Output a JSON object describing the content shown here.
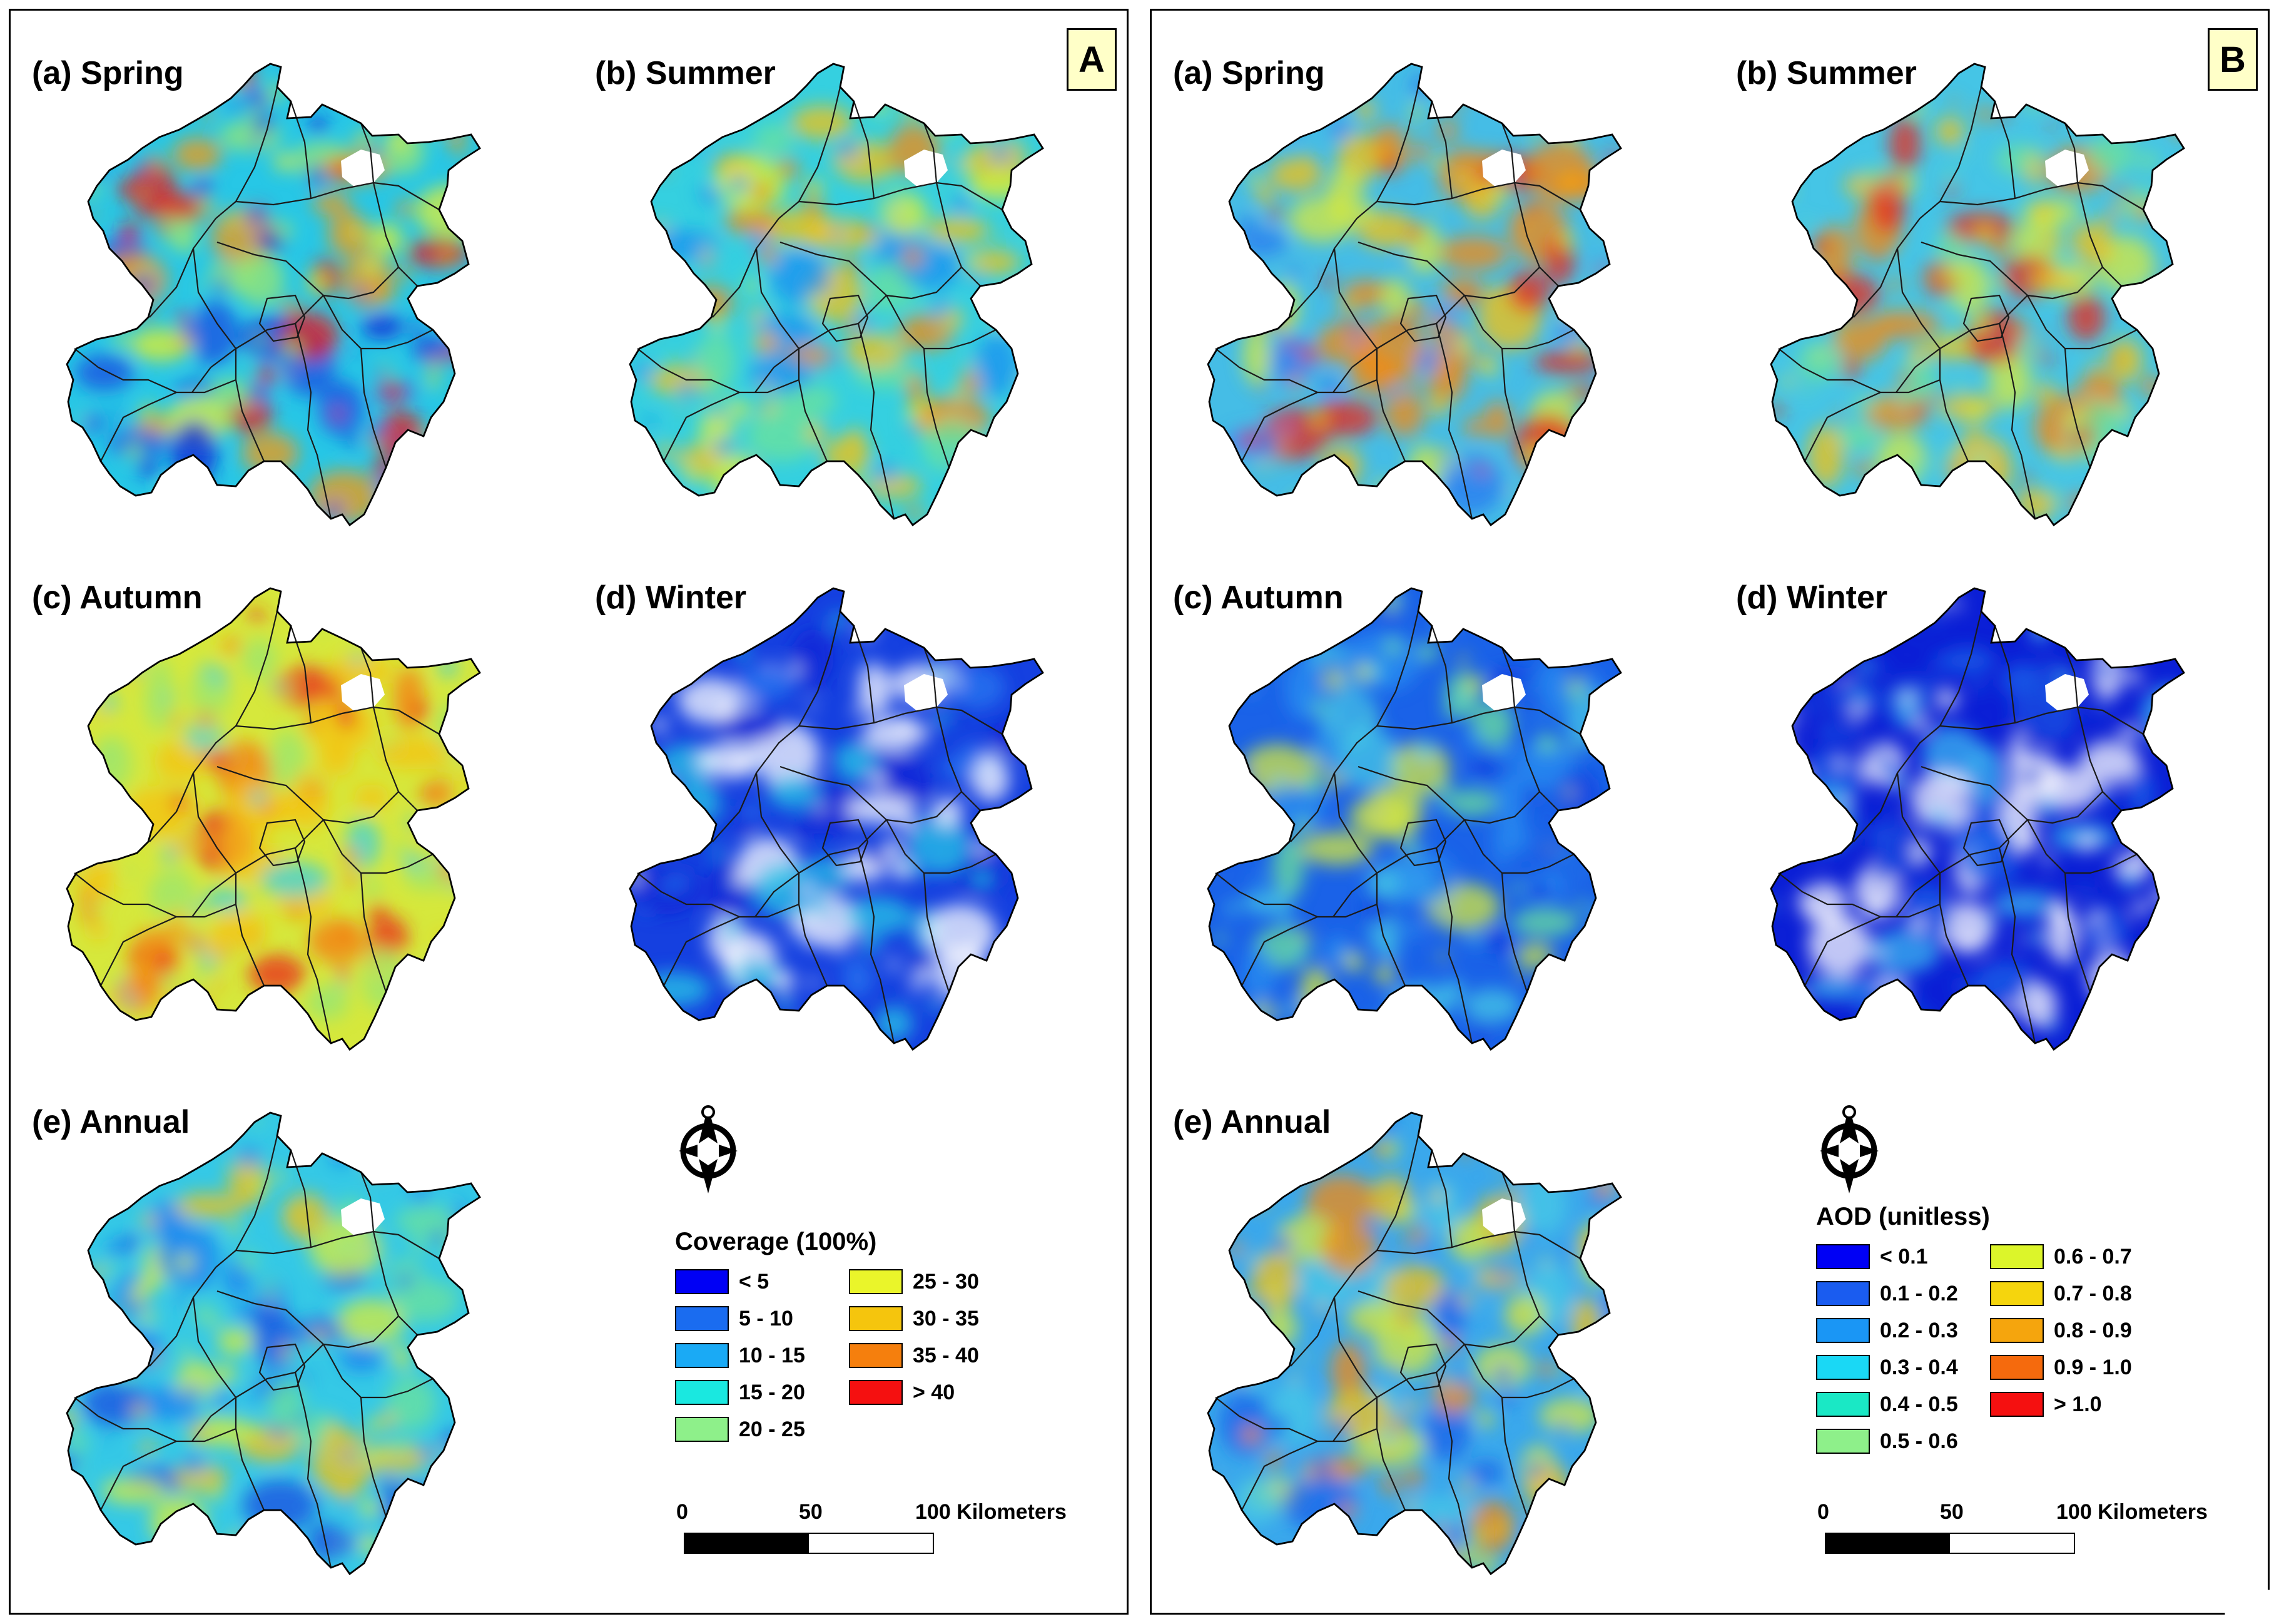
{
  "panels": [
    {
      "id": "A",
      "label": "A",
      "maps": [
        {
          "title": "(a) Spring",
          "base": "#27c7e6",
          "blobs": [
            "#1a4de0",
            "#0b1fd6",
            "#9ae670",
            "#e4ef2a",
            "#f59a10",
            "#ea1a1a"
          ]
        },
        {
          "title": "(b) Summer",
          "base": "#35d0e0",
          "blobs": [
            "#1c8ff0",
            "#6ee29b",
            "#e4ef2a",
            "#f5c215",
            "#f5890d"
          ]
        },
        {
          "title": "(c) Autumn",
          "base": "#d6e83c",
          "blobs": [
            "#f5c215",
            "#f57a0d",
            "#ea2a1a",
            "#3bd0e0",
            "#9ae670"
          ]
        },
        {
          "title": "(d) Winter",
          "base": "#1540e0",
          "blobs": [
            "#ffffff",
            "#0b1fd6",
            "#27c7e6",
            "#2a78f0",
            "#ffffff"
          ]
        },
        {
          "title": "(e) Annual",
          "base": "#35c9e6",
          "blobs": [
            "#1c7ff0",
            "#6ee29b",
            "#d8ec3a",
            "#1a4de0",
            "#f5c215"
          ]
        }
      ],
      "legend": {
        "title": "Coverage (100%)",
        "items": [
          {
            "label": "< 5",
            "color": "#0000f5"
          },
          {
            "label": "5 - 10",
            "color": "#1a6cf0"
          },
          {
            "label": "10 - 15",
            "color": "#1aaaf5"
          },
          {
            "label": "15 - 20",
            "color": "#1ae8e0"
          },
          {
            "label": "20 - 25",
            "color": "#8ef08a"
          },
          {
            "label": "25 - 30",
            "color": "#eaf52a"
          },
          {
            "label": "30 - 35",
            "color": "#f5c50d"
          },
          {
            "label": "35 - 40",
            "color": "#f57f0d"
          },
          {
            "label": "> 40",
            "color": "#f51010"
          }
        ]
      },
      "scale": {
        "zero": "0",
        "mid": "50",
        "end": "100 Kilometers"
      },
      "north_icon": "north-arrow-icon"
    },
    {
      "id": "B",
      "label": "B",
      "maps": [
        {
          "title": "(a) Spring",
          "base": "#45bde6",
          "blobs": [
            "#f5c215",
            "#f5890d",
            "#ea2a1a",
            "#d6e83c",
            "#2a78f0"
          ]
        },
        {
          "title": "(b) Summer",
          "base": "#45c5e6",
          "blobs": [
            "#f5c215",
            "#f5890d",
            "#ea2a1a",
            "#d6e83c",
            "#6ee29b"
          ]
        },
        {
          "title": "(c) Autumn",
          "base": "#1a62e8",
          "blobs": [
            "#2a8ff0",
            "#45c9e6",
            "#d6e83c",
            "#1540e0",
            "#6ee29b"
          ]
        },
        {
          "title": "(d) Winter",
          "base": "#0b1fd6",
          "blobs": [
            "#ffffff",
            "#1a4de0",
            "#3fb8f0",
            "#ffffff",
            "#1a62e8"
          ]
        },
        {
          "title": "(e) Annual",
          "base": "#3aa8ec",
          "blobs": [
            "#45c9e6",
            "#d6e83c",
            "#f5c215",
            "#1a62e8",
            "#f5890d"
          ]
        }
      ],
      "legend": {
        "title": "AOD (unitless)",
        "items": [
          {
            "label": "< 0.1",
            "color": "#0000f5"
          },
          {
            "label": "0.1 - 0.2",
            "color": "#1a5cf0"
          },
          {
            "label": "0.2 - 0.3",
            "color": "#1a96f5"
          },
          {
            "label": "0.3 - 0.4",
            "color": "#1ad8f5"
          },
          {
            "label": "0.4 - 0.5",
            "color": "#1ae8c5"
          },
          {
            "label": "0.5 - 0.6",
            "color": "#8ef08a"
          },
          {
            "label": "0.6 - 0.7",
            "color": "#dcf52a"
          },
          {
            "label": "0.7 - 0.8",
            "color": "#f5d50d"
          },
          {
            "label": "0.8 - 0.9",
            "color": "#f5a50d"
          },
          {
            "label": "0.9 - 1.0",
            "color": "#f56a0d"
          },
          {
            "label": "> 1.0",
            "color": "#f51010"
          }
        ]
      },
      "scale": {
        "zero": "0",
        "mid": "50",
        "end": "100 Kilometers"
      },
      "north_icon": "north-arrow-icon"
    }
  ]
}
